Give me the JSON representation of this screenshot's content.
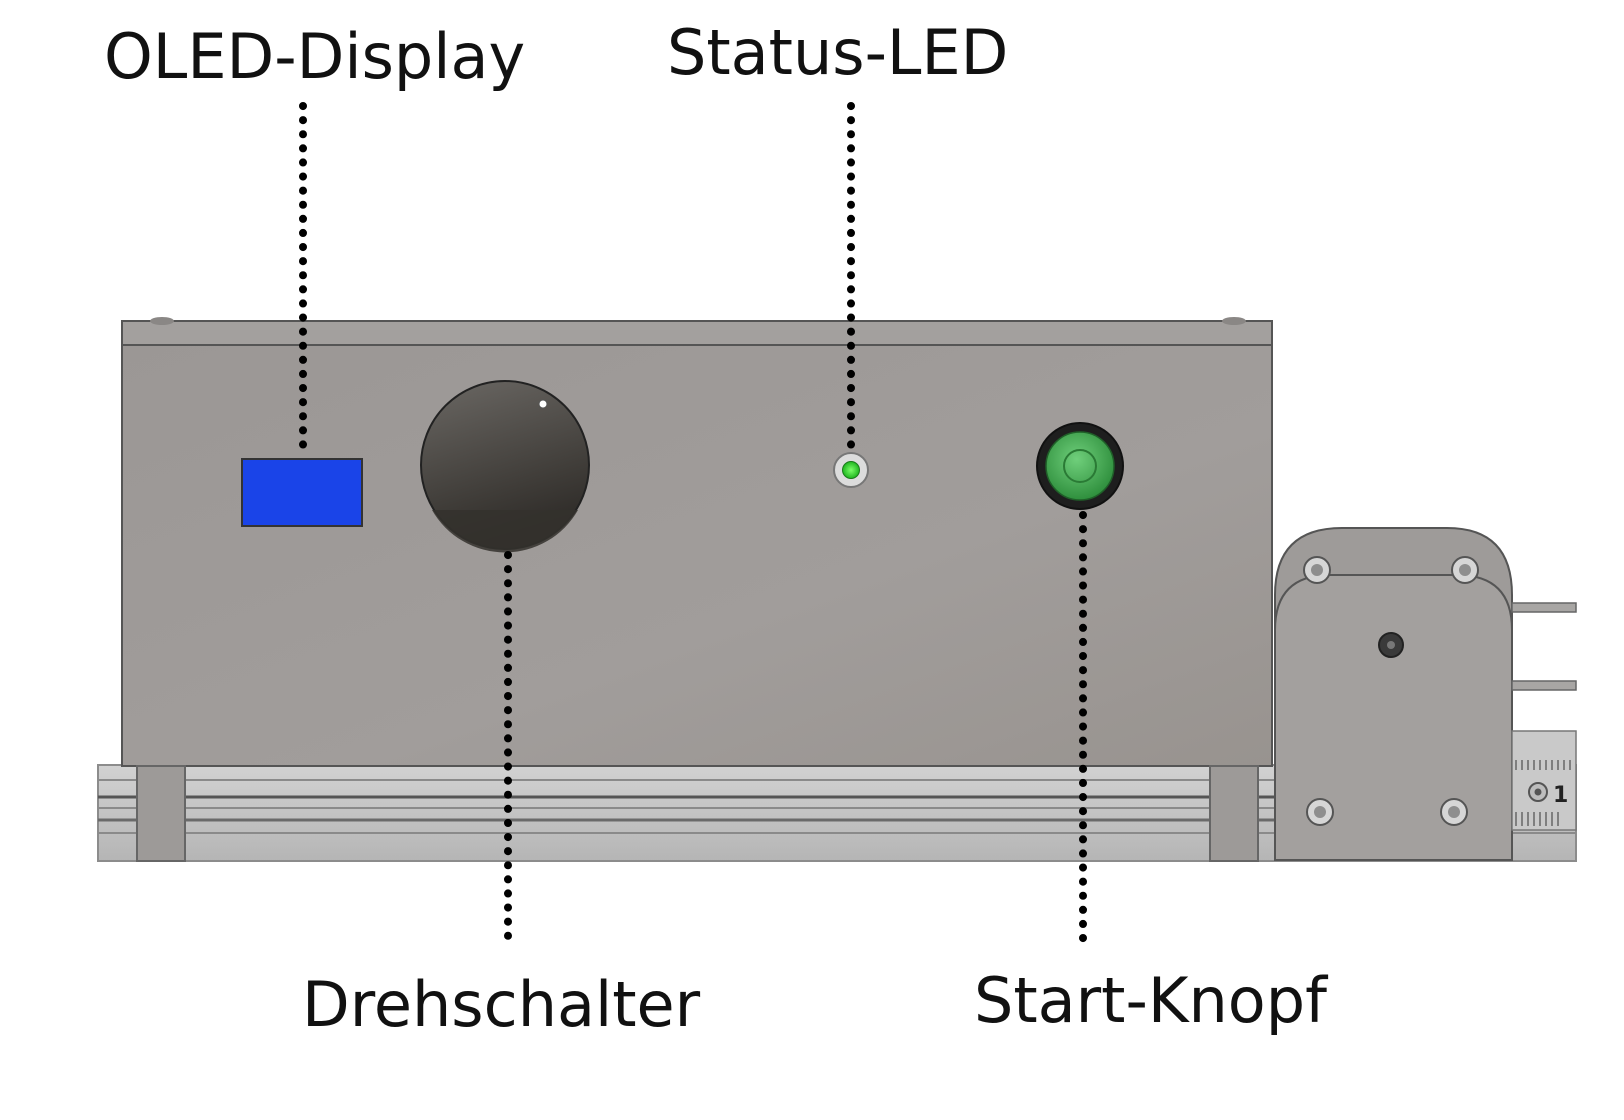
{
  "labels": {
    "oled_display": "OLED-Display",
    "status_led": "Status-LED",
    "drehschalter": "Drehschalter",
    "start_knopf": "Start-Knopf"
  },
  "ruler": {
    "mark": "1"
  },
  "colors": {
    "housing": "#9a9694",
    "display": "#1a44e8",
    "led": "#3fe03f",
    "button": "#3aa64a",
    "rail": "#c4c4c4",
    "leader": "#000000"
  }
}
